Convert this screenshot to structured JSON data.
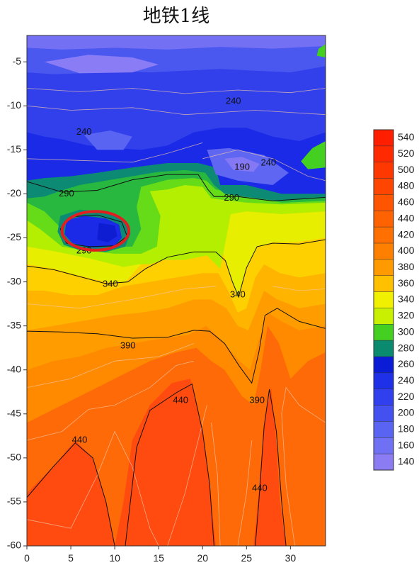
{
  "chart_data": {
    "type": "heatmap",
    "title": "地铁1线",
    "xlabel": "",
    "ylabel": "",
    "xlim": [
      0,
      34
    ],
    "ylim": [
      -60,
      -2
    ],
    "x_ticks": [
      "0",
      "5",
      "10",
      "15",
      "20",
      "25",
      "30"
    ],
    "y_ticks": [
      "-5",
      "-10",
      "-15",
      "-20",
      "-25",
      "-30",
      "-35",
      "-40",
      "-45",
      "-50",
      "-55",
      "-60"
    ],
    "colorbar": {
      "levels": [
        "540",
        "520",
        "500",
        "480",
        "460",
        "440",
        "420",
        "400",
        "380",
        "360",
        "340",
        "320",
        "300",
        "280",
        "260",
        "240",
        "220",
        "200",
        "180",
        "160",
        "140"
      ],
      "colors": [
        "#ff1e00",
        "#ff2a00",
        "#ff3800",
        "#ff4600",
        "#ff5400",
        "#ff6200",
        "#ff7000",
        "#ff8000",
        "#ff9a00",
        "#ffc000",
        "#f0f000",
        "#c8f000",
        "#44d020",
        "#0a8a6e",
        "#0a1cd6",
        "#1e30e8",
        "#3040ee",
        "#4450f0",
        "#5a64f2",
        "#7070f4",
        "#8c7cf4"
      ]
    },
    "contour_labels": [
      {
        "text": "240",
        "x": 23.5,
        "y": -9.5
      },
      {
        "text": "240",
        "x": 6.5,
        "y": -13
      },
      {
        "text": "190",
        "x": 24.5,
        "y": -17
      },
      {
        "text": "240",
        "x": 27.5,
        "y": -16.5
      },
      {
        "text": "290",
        "x": 4.5,
        "y": -20
      },
      {
        "text": "290",
        "x": 23.3,
        "y": -20.5
      },
      {
        "text": "290",
        "x": 6.5,
        "y": -26.5
      },
      {
        "text": "340",
        "x": 9.5,
        "y": -30.3
      },
      {
        "text": "340",
        "x": 24,
        "y": -31.5
      },
      {
        "text": "390",
        "x": 11.5,
        "y": -37.3
      },
      {
        "text": "390",
        "x": 26.2,
        "y": -43.5
      },
      {
        "text": "440",
        "x": 17.5,
        "y": -43.5
      },
      {
        "text": "440",
        "x": 6,
        "y": -48
      },
      {
        "text": "440",
        "x": 26.5,
        "y": -53.5
      }
    ],
    "highlight": {
      "shape": "ellipse",
      "color": "#e02020",
      "cx": 7.8,
      "cy": -24.2,
      "rx": 3.8,
      "ry": 2.2
    }
  }
}
